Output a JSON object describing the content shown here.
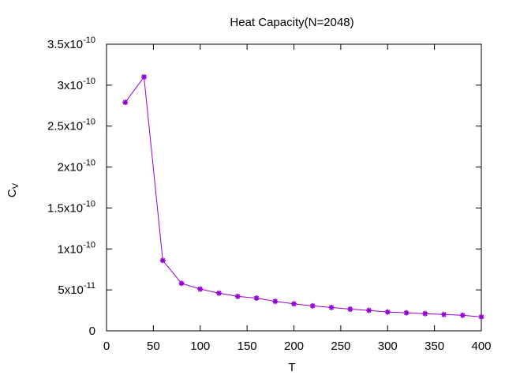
{
  "chart_data": {
    "type": "line",
    "title": "Heat Capacity(N=2048)",
    "xlabel": "T",
    "ylabel": {
      "main": "C",
      "sub": "V"
    },
    "xlim": [
      0,
      400
    ],
    "ylim": [
      0,
      3.5e-10
    ],
    "x_ticks": [
      {
        "value": 0,
        "label": "0"
      },
      {
        "value": 50,
        "label": "50"
      },
      {
        "value": 100,
        "label": "100"
      },
      {
        "value": 150,
        "label": "150"
      },
      {
        "value": 200,
        "label": "200"
      },
      {
        "value": 250,
        "label": "250"
      },
      {
        "value": 300,
        "label": "300"
      },
      {
        "value": 350,
        "label": "350"
      },
      {
        "value": 400,
        "label": "400"
      }
    ],
    "y_ticks": [
      {
        "value": 0,
        "mant": "0",
        "exp": ""
      },
      {
        "value": 5e-11,
        "mant": "5x10",
        "exp": "-11"
      },
      {
        "value": 1e-10,
        "mant": "1x10",
        "exp": "-10"
      },
      {
        "value": 1.5e-10,
        "mant": "1.5x10",
        "exp": "-10"
      },
      {
        "value": 2e-10,
        "mant": "2x10",
        "exp": "-10"
      },
      {
        "value": 2.5e-10,
        "mant": "2.5x10",
        "exp": "-10"
      },
      {
        "value": 3e-10,
        "mant": "3x10",
        "exp": "-10"
      },
      {
        "value": 3.5e-10,
        "mant": "3.5x10",
        "exp": "-10"
      }
    ],
    "grid": false,
    "series": [
      {
        "color": "#9400d3",
        "marker": "star",
        "x": [
          20,
          40,
          60,
          80,
          100,
          120,
          140,
          160,
          180,
          200,
          220,
          240,
          260,
          280,
          300,
          320,
          340,
          360,
          380,
          400
        ],
        "y": [
          2.79e-10,
          3.1e-10,
          8.6e-11,
          5.8e-11,
          5.1e-11,
          4.6e-11,
          4.2e-11,
          4e-11,
          3.6e-11,
          3.3e-11,
          3.05e-11,
          2.85e-11,
          2.65e-11,
          2.5e-11,
          2.3e-11,
          2.2e-11,
          2.1e-11,
          2e-11,
          1.9e-11,
          1.7e-11
        ]
      }
    ]
  }
}
